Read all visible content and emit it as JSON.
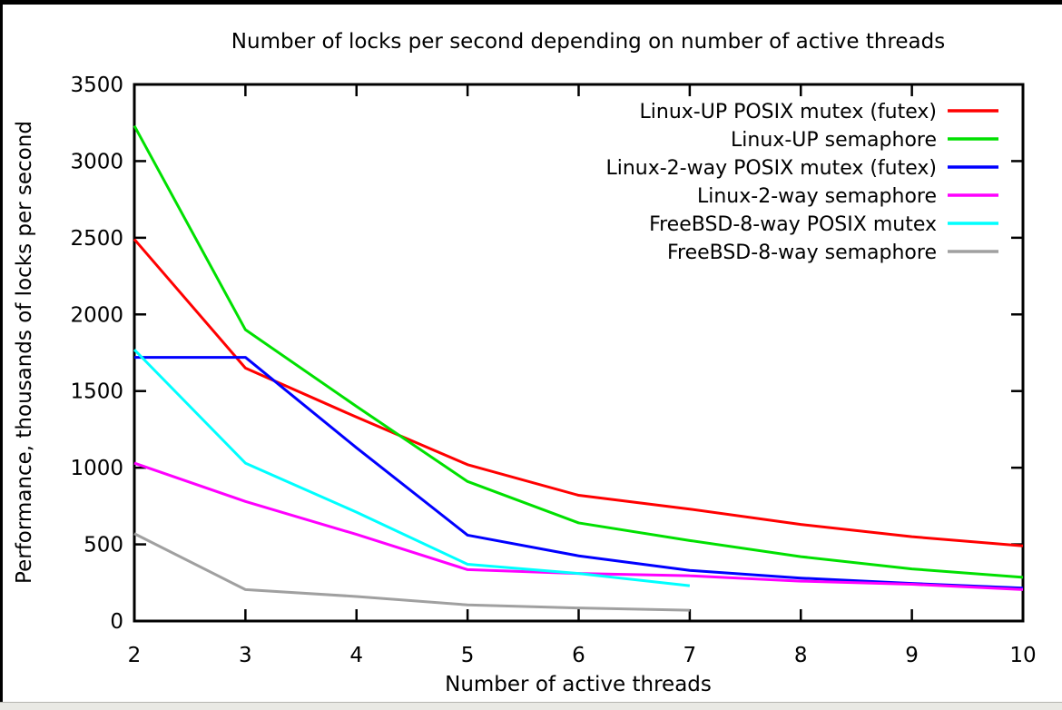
{
  "window": {
    "background_color": "#ffffff",
    "border_color": "#000000",
    "bottom_strip_color": "#e9e9e4"
  },
  "chart_data": {
    "type": "line",
    "title": "Number of locks per second depending on number of active threads",
    "xlabel": "Number of active threads",
    "ylabel": "Performance, thousands of locks per second",
    "xlim": [
      2,
      10
    ],
    "ylim": [
      0,
      3500
    ],
    "x_ticks": [
      2,
      3,
      4,
      5,
      6,
      7,
      8,
      9,
      10
    ],
    "y_ticks": [
      0,
      500,
      1000,
      1500,
      2000,
      2500,
      3000,
      3500
    ],
    "grid": false,
    "legend_position": "top-right-inside",
    "series": [
      {
        "name": "Linux-UP POSIX mutex (futex)",
        "color": "#ff0000",
        "x": [
          2,
          3,
          4,
          5,
          6,
          7,
          8,
          9,
          10
        ],
        "values": [
          2490,
          1650,
          1330,
          1020,
          820,
          730,
          630,
          550,
          490
        ]
      },
      {
        "name": "Linux-UP semaphore",
        "color": "#00e000",
        "x": [
          2,
          3,
          4,
          5,
          6,
          7,
          8,
          9,
          10
        ],
        "values": [
          3230,
          1900,
          1400,
          910,
          640,
          525,
          420,
          340,
          285
        ]
      },
      {
        "name": "Linux-2-way  POSIX mutex (futex)",
        "color": "#0000ff",
        "x": [
          2,
          3,
          4,
          5,
          6,
          7,
          8,
          9,
          10
        ],
        "values": [
          1720,
          1720,
          1130,
          560,
          425,
          330,
          280,
          245,
          215
        ]
      },
      {
        "name": "Linux-2-way semaphore",
        "color": "#ff00ff",
        "x": [
          2,
          3,
          4,
          5,
          6,
          7,
          8,
          9,
          10
        ],
        "values": [
          1030,
          780,
          565,
          335,
          310,
          295,
          260,
          240,
          205
        ]
      },
      {
        "name": "FreeBSD-8-way POSIX mutex",
        "color": "#00ffff",
        "x": [
          2,
          3,
          4,
          5,
          6,
          7
        ],
        "values": [
          1770,
          1030,
          710,
          370,
          310,
          230
        ]
      },
      {
        "name": "FreeBSD-8-way semaphore",
        "color": "#a0a0a0",
        "x": [
          2,
          3,
          4,
          5,
          6,
          7
        ],
        "values": [
          570,
          205,
          160,
          105,
          85,
          70
        ]
      }
    ]
  }
}
